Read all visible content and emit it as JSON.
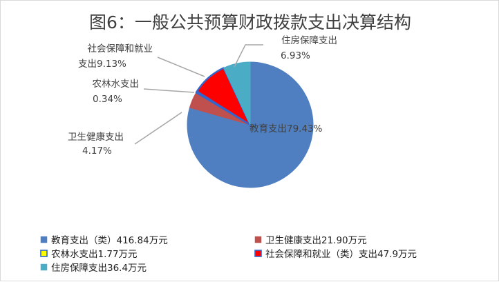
{
  "chart_data": {
    "type": "pie",
    "title": "图6：一般公共预算财政拨款支出决算结构",
    "slices": [
      {
        "key": "edu",
        "label_line1": "教育支出79.43%",
        "label_line2": "",
        "value": 79.43,
        "color": "#4f7fc0",
        "border": "#4f7fc0"
      },
      {
        "key": "health",
        "label_line1": "卫生健康支出",
        "label_line2": "4.17%",
        "value": 4.17,
        "color": "#c0504d",
        "border": "#c0504d"
      },
      {
        "key": "agri",
        "label_line1": "农林水支出",
        "label_line2": "0.34%",
        "value": 0.34,
        "color": "#ffff00",
        "border": "#3366cc"
      },
      {
        "key": "social",
        "label_line1": "社会保障和就业",
        "label_line2": "支出9.13%",
        "value": 9.13,
        "color": "#ff0000",
        "border": "#3366cc"
      },
      {
        "key": "housing",
        "label_line1": "住房保障支出",
        "label_line2": "6.93%",
        "value": 6.93,
        "color": "#4bacc6",
        "border": "#4bacc6"
      }
    ],
    "legend": [
      {
        "key": "edu",
        "text": "教育支出（类）416.84万元",
        "color": "#4f7fc0",
        "border": "#4f7fc0"
      },
      {
        "key": "health",
        "text": "卫生健康支出21.90万元",
        "color": "#c0504d",
        "border": "#c0504d"
      },
      {
        "key": "agri",
        "text": "农林水支出1.77万元",
        "color": "#ffff00",
        "border": "#3366cc"
      },
      {
        "key": "social",
        "text": "社会保障和就业（类）支出47.9万元",
        "color": "#ff0000",
        "border": "#3366cc"
      },
      {
        "key": "housing",
        "text": "住房保障支出36.4万元",
        "color": "#4bacc6",
        "border": "#4bacc6"
      }
    ],
    "legend_position": "bottom"
  }
}
